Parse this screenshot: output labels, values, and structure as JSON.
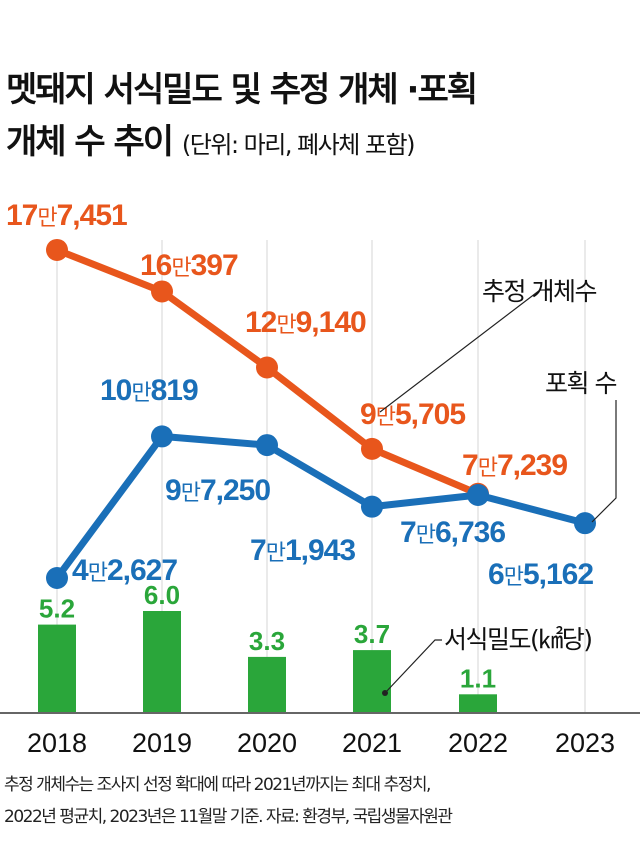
{
  "title": {
    "line1": "멧돼지 서식밀도 및 추정 개체 ·포획",
    "line2": "개체 수 추이",
    "unit": "(단위: 마리, 폐사체 포함)"
  },
  "chart_data": {
    "type": "line+bar",
    "categories": [
      "2018",
      "2019",
      "2020",
      "2021",
      "2022",
      "2023"
    ],
    "series": [
      {
        "name": "추정 개체수",
        "color": "#e8561c",
        "values": [
          177451,
          160397,
          129140,
          95705,
          77239,
          null
        ],
        "labels": [
          [
            "17",
            "만",
            "7,451"
          ],
          [
            "16",
            "만",
            "397"
          ],
          [
            "12",
            "만",
            "9,140"
          ],
          [
            "9",
            "만",
            "5,705"
          ],
          [
            "7",
            "만",
            "7,239"
          ],
          null
        ]
      },
      {
        "name": "포획 수",
        "color": "#1a6fb8",
        "values": [
          42627,
          100819,
          97250,
          71943,
          76736,
          65162
        ],
        "labels": [
          [
            "4",
            "만",
            "2,627"
          ],
          [
            "10",
            "만",
            "819"
          ],
          [
            "9",
            "만",
            "7,250"
          ],
          [
            "7",
            "만",
            "1,943"
          ],
          [
            "7",
            "만",
            "6,736"
          ],
          [
            "6",
            "만",
            "5,162"
          ]
        ]
      },
      {
        "name": "서식밀도(㎢당)",
        "color": "#2aa63a",
        "type": "bar",
        "values": [
          5.2,
          6.0,
          3.3,
          3.7,
          1.1,
          null
        ],
        "labels": [
          "5.2",
          "6.0",
          "3.3",
          "3.7",
          "1.1",
          null
        ]
      }
    ],
    "grid": "vertical"
  },
  "notes": {
    "line1": "추정 개체수는 조사지 선정 확대에 따라 2021년까지는 최대 추정치,",
    "line2": "2022년 평균치, 2023년은 11월말 기준. 자료: 환경부, 국립생물자원관"
  }
}
